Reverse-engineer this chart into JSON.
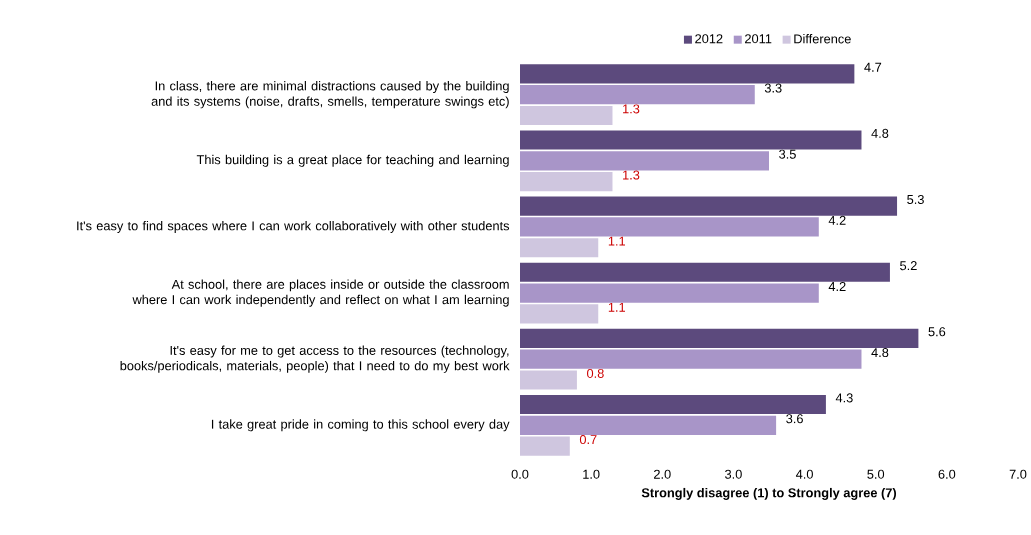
{
  "chart_data": {
    "type": "bar",
    "orientation": "horizontal",
    "xlabel": "Strongly disagree (1) to Strongly agree (7)",
    "categories": [
      "In class, there are minimal distractions caused by the building and its systems (noise, drafts, smells, temperature swings etc)",
      "This building is a great place for teaching and learning",
      "It's easy to find spaces where I can work collaboratively with other students",
      "At school, there are places inside or outside the classroom where I can work independently and reflect on what I am learning",
      "It's easy for me to get access to the resources (technology, books/periodicals, materials, people) that I need to do my best work",
      "I take great pride in coming to this school every day"
    ],
    "series": [
      {
        "name": "2012",
        "color": "#5c4a7d",
        "values": [
          4.7,
          4.8,
          5.3,
          5.2,
          5.6,
          4.3
        ]
      },
      {
        "name": "2011",
        "color": "#a895c8",
        "values": [
          3.3,
          3.5,
          4.2,
          4.2,
          4.8,
          3.6
        ]
      },
      {
        "name": "Difference",
        "color": "#cfc6df",
        "values": [
          1.3,
          1.3,
          1.1,
          1.1,
          0.8,
          0.7
        ]
      }
    ],
    "xlim": [
      0,
      7
    ],
    "xticks": [
      {
        "value": 0,
        "label": "0.0"
      },
      {
        "value": 1,
        "label": "1.0"
      },
      {
        "value": 2,
        "label": "2.0"
      },
      {
        "value": 3,
        "label": "3.0"
      },
      {
        "value": 4,
        "label": "4.0"
      },
      {
        "value": 5,
        "label": "5.0"
      },
      {
        "value": 6,
        "label": "6.0"
      },
      {
        "value": 7,
        "label": "7.0"
      }
    ],
    "data_labels": true,
    "legend": "top"
  }
}
